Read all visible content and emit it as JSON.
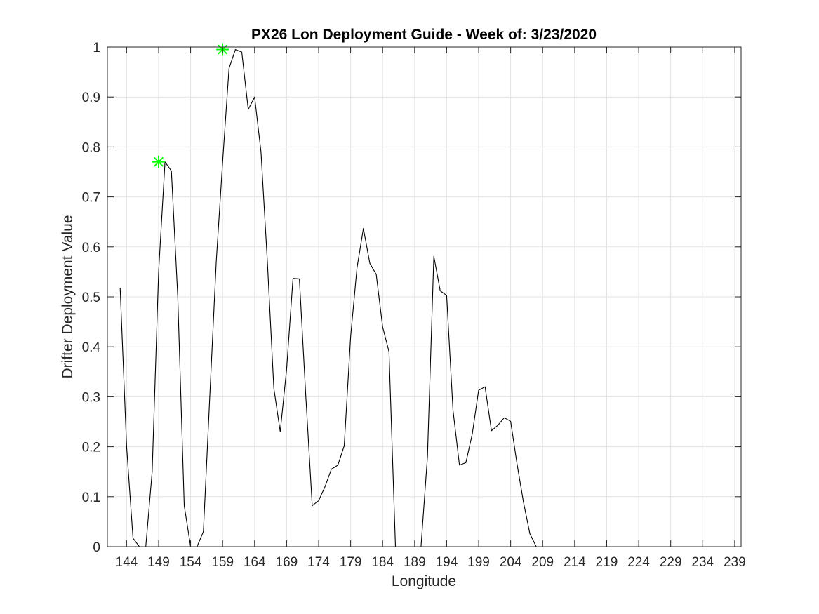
{
  "chart_data": {
    "type": "line",
    "title": "PX26 Lon Deployment Guide - Week of: 3/23/2020",
    "xlabel": "Longitude",
    "ylabel": "Drifter Deployment Value",
    "xlim": [
      141,
      240
    ],
    "ylim": [
      0,
      1
    ],
    "xticks": [
      144,
      149,
      154,
      159,
      164,
      169,
      174,
      179,
      184,
      189,
      194,
      199,
      204,
      209,
      214,
      219,
      224,
      229,
      234,
      239
    ],
    "yticks": [
      0,
      0.1,
      0.2,
      0.3,
      0.4,
      0.5,
      0.6,
      0.7,
      0.8,
      0.9,
      1
    ],
    "ytick_labels": [
      "0",
      "0.1",
      "0.2",
      "0.3",
      "0.4",
      "0.5",
      "0.6",
      "0.7",
      "0.8",
      "0.9",
      "1"
    ],
    "grid": true,
    "series": [
      {
        "color": "#000000",
        "x": [
          143,
          144,
          145,
          146,
          147,
          148,
          149,
          150,
          151,
          152,
          153,
          154,
          155,
          156,
          157,
          158,
          159,
          160,
          161,
          162,
          163,
          164,
          165,
          166,
          167,
          168,
          169,
          170,
          171,
          172,
          173,
          174,
          175,
          176,
          177,
          178,
          179,
          180,
          181,
          182,
          183,
          184,
          185,
          186,
          187,
          188,
          189,
          190,
          191,
          192,
          193,
          194,
          195,
          196,
          197,
          198,
          199,
          200,
          201,
          202,
          203,
          204,
          205,
          206,
          207,
          208,
          209,
          210,
          211,
          212,
          213,
          214,
          215,
          216,
          217,
          218,
          219,
          220,
          221,
          222,
          223,
          224,
          225,
          226,
          227,
          228,
          229,
          230,
          231,
          232,
          233,
          234,
          235,
          236,
          237,
          238
        ],
        "y": [
          0.518,
          0.2,
          0.017,
          0.0,
          0.0,
          0.15,
          0.55,
          0.77,
          0.752,
          0.5,
          0.082,
          0.0,
          0.0,
          0.03,
          0.3,
          0.57,
          0.77,
          0.957,
          0.995,
          0.99,
          0.875,
          0.9,
          0.79,
          0.57,
          0.317,
          0.23,
          0.355,
          0.537,
          0.536,
          0.3,
          0.082,
          0.092,
          0.12,
          0.155,
          0.163,
          0.202,
          0.42,
          0.558,
          0.637,
          0.567,
          0.545,
          0.44,
          0.39,
          0.0,
          0.0,
          0.0,
          0.0,
          0.0,
          0.18,
          0.581,
          0.512,
          0.503,
          0.273,
          0.163,
          0.168,
          0.225,
          0.313,
          0.32,
          0.232,
          0.243,
          0.258,
          0.251,
          0.165,
          0.089,
          0.026,
          0.0,
          0.0,
          0.0,
          0.0,
          0.0,
          0.0,
          0.0,
          0.0,
          0.0,
          0.0,
          0.0,
          0.0,
          0.0,
          0.0,
          0.0,
          0.0,
          0.0,
          0.0,
          0.0,
          0.0,
          0.0,
          0.0,
          0.0,
          0.0,
          0.0,
          0.0,
          0.0,
          0.0,
          0.0,
          0.0,
          0.0
        ]
      }
    ],
    "markers": {
      "color": "#00ff00",
      "symbol": "asterisk",
      "points": [
        {
          "x": 149,
          "y": 0.77
        },
        {
          "x": 159,
          "y": 0.995
        }
      ]
    }
  }
}
